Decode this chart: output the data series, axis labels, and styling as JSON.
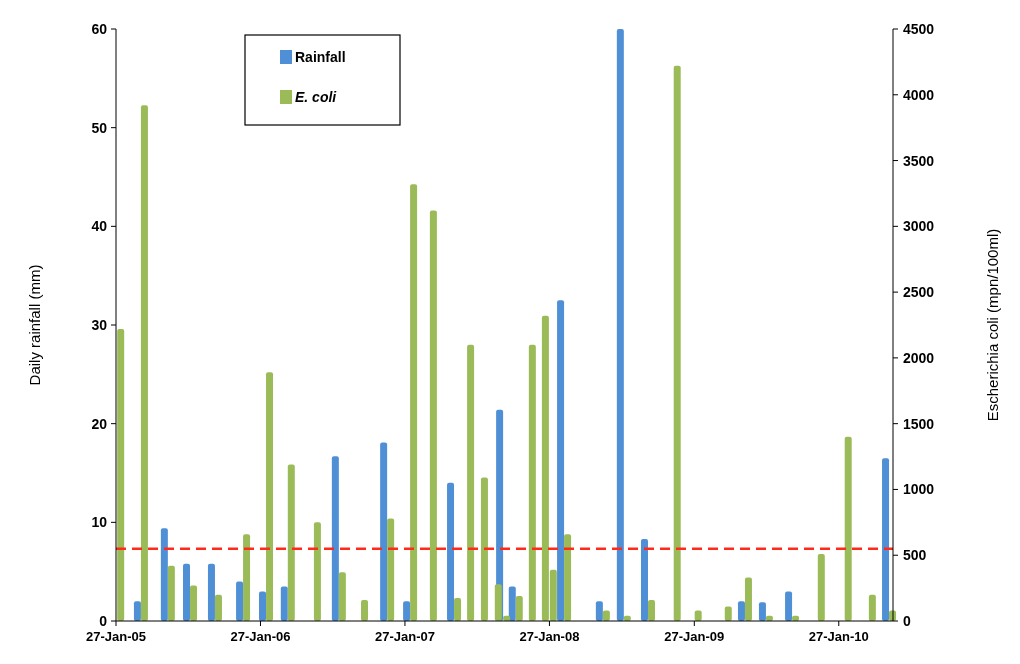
{
  "chart_data": {
    "type": "bar",
    "ylabel": "Daily rainfall (mm)",
    "y2label": "Escherichia coli (mpn/100ml)",
    "x": [
      "2005-01-30",
      "2005-03-31",
      "2005-06-07",
      "2005-08-02",
      "2005-10-04",
      "2005-12-14",
      "2006-02-10",
      "2006-04-06",
      "2006-06-11",
      "2006-08-13",
      "2006-10-08",
      "2006-12-13",
      "2007-02-09",
      "2007-03-31",
      "2007-05-31",
      "2007-07-03",
      "2007-08-07",
      "2007-09-11",
      "2007-10-02",
      "2007-11-03",
      "2007-12-06",
      "2008-01-08",
      "2008-01-28",
      "2008-03-04",
      "2008-06-10",
      "2008-08-02",
      "2008-10-02",
      "2008-12-06",
      "2009-01-28",
      "2009-04-14",
      "2009-06-04",
      "2009-07-27",
      "2009-10-01",
      "2009-12-05",
      "2010-02-11",
      "2010-04-13",
      "2010-06-03"
    ],
    "series": [
      {
        "name": "Rainfall",
        "color": "#4f8fd6",
        "values": [
          null,
          2,
          9.4,
          5.8,
          5.8,
          4,
          3,
          3.5,
          null,
          16.7,
          null,
          18.1,
          2,
          null,
          14,
          null,
          null,
          null,
          21.4,
          3.5,
          null,
          null,
          null,
          32.5,
          2,
          60,
          8.3,
          null,
          null,
          null,
          2,
          1.9,
          3,
          null,
          null,
          null,
          16.5
        ]
      },
      {
        "name": "E. coli",
        "color": "#9bbb59",
        "axis": "y2",
        "values": [
          2220,
          3920,
          420,
          270,
          200,
          660,
          1890,
          1190,
          750,
          370,
          160,
          780,
          3320,
          3120,
          175,
          2100,
          1090,
          280,
          40,
          190,
          2100,
          2320,
          390,
          660,
          80,
          40,
          160,
          4220,
          80,
          110,
          330,
          40,
          40,
          510,
          1400,
          200,
          80
        ]
      }
    ],
    "xlim": [
      "2005-01-27",
      "2010-06-13"
    ],
    "xticks": [
      {
        "value": "2005-01-27",
        "label": "27-Jan-05"
      },
      {
        "value": "2006-01-27",
        "label": "27-Jan-06"
      },
      {
        "value": "2007-01-27",
        "label": "27-Jan-07"
      },
      {
        "value": "2008-01-27",
        "label": "27-Jan-08"
      },
      {
        "value": "2009-01-27",
        "label": "27-Jan-09"
      },
      {
        "value": "2010-01-27",
        "label": "27-Jan-10"
      }
    ],
    "ylim": [
      0,
      60
    ],
    "yticks": [
      0,
      10,
      20,
      30,
      40,
      50,
      60
    ],
    "y2lim": [
      0,
      4500
    ],
    "y2ticks": [
      0,
      500,
      1000,
      1500,
      2000,
      2500,
      3000,
      3500,
      4000,
      4500
    ],
    "ref_lines": [
      {
        "axis": "y2",
        "value": 550,
        "color": "#ff2a1a",
        "line_style": "dashed"
      }
    ],
    "legend": "top left",
    "grid": false
  }
}
